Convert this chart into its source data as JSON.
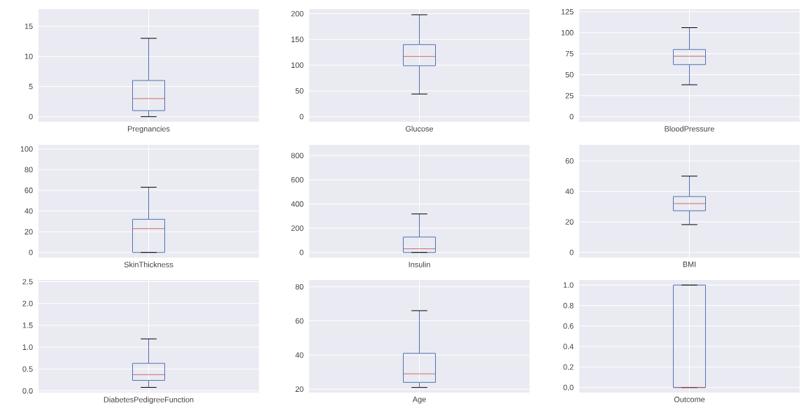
{
  "chart_data": [
    {
      "type": "box",
      "categories": [
        "Pregnancies"
      ],
      "color": "#4c72b0",
      "grid": true,
      "ylim": [
        -0.85,
        17.85
      ],
      "yticks": [
        0,
        5,
        10,
        15
      ],
      "boxes": [
        {
          "low": 0,
          "q1": 1,
          "median": 3,
          "q3": 6,
          "high": 13
        }
      ]
    },
    {
      "type": "box",
      "categories": [
        "Glucose"
      ],
      "color": "#4c72b0",
      "grid": true,
      "ylim": [
        -9.95,
        208.95
      ],
      "yticks": [
        0,
        50,
        100,
        150,
        200
      ],
      "boxes": [
        {
          "low": 44,
          "q1": 99,
          "median": 117,
          "q3": 140,
          "high": 198
        }
      ]
    },
    {
      "type": "box",
      "categories": [
        "BloodPressure"
      ],
      "color": "#4c72b0",
      "grid": true,
      "ylim": [
        -6.1,
        128.1
      ],
      "yticks": [
        0,
        25,
        50,
        75,
        100,
        125
      ],
      "boxes": [
        {
          "low": 38,
          "q1": 62,
          "median": 72,
          "q3": 80,
          "high": 106
        }
      ]
    },
    {
      "type": "box",
      "categories": [
        "SkinThickness"
      ],
      "color": "#4c72b0",
      "grid": true,
      "ylim": [
        -4.95,
        103.95
      ],
      "yticks": [
        0,
        20,
        40,
        60,
        80,
        100
      ],
      "boxes": [
        {
          "low": 0,
          "q1": 0,
          "median": 23,
          "q3": 32,
          "high": 63
        }
      ]
    },
    {
      "type": "box",
      "categories": [
        "Insulin"
      ],
      "color": "#4c72b0",
      "grid": true,
      "ylim": [
        -42.3,
        888.3
      ],
      "yticks": [
        0,
        200,
        400,
        600,
        800
      ],
      "boxes": [
        {
          "low": 0,
          "q1": 0,
          "median": 30,
          "q3": 127,
          "high": 318
        }
      ]
    },
    {
      "type": "box",
      "categories": [
        "BMI"
      ],
      "color": "#4c72b0",
      "grid": true,
      "ylim": [
        -3.4,
        70.5
      ],
      "yticks": [
        0,
        20,
        40,
        60
      ],
      "boxes": [
        {
          "low": 18.2,
          "q1": 27.3,
          "median": 32,
          "q3": 36.6,
          "high": 50
        }
      ]
    },
    {
      "type": "box",
      "categories": [
        "DiabetesPedigreeFunction"
      ],
      "color": "#4c72b0",
      "grid": true,
      "ylim": [
        -0.04,
        2.54
      ],
      "yticks": [
        {
          "value": 0,
          "label": "0.0"
        },
        {
          "value": 0.5,
          "label": "0.5"
        },
        {
          "value": 1,
          "label": "1.0"
        },
        {
          "value": 1.5,
          "label": "1.5"
        },
        {
          "value": 2,
          "label": "2.0"
        },
        {
          "value": 2.5,
          "label": "2.5"
        }
      ],
      "boxes": [
        {
          "low": 0.08,
          "q1": 0.24,
          "median": 0.37,
          "q3": 0.63,
          "high": 1.19
        }
      ]
    },
    {
      "type": "box",
      "categories": [
        "Age"
      ],
      "color": "#4c72b0",
      "grid": true,
      "ylim": [
        18,
        84
      ],
      "yticks": [
        20,
        40,
        60,
        80
      ],
      "boxes": [
        {
          "low": 21,
          "q1": 24,
          "median": 29,
          "q3": 41,
          "high": 66
        }
      ]
    },
    {
      "type": "box",
      "categories": [
        "Outcome"
      ],
      "color": "#4c72b0",
      "grid": true,
      "ylim": [
        -0.05,
        1.05
      ],
      "yticks": [
        {
          "value": 0,
          "label": "0.0"
        },
        {
          "value": 0.2,
          "label": "0.2"
        },
        {
          "value": 0.4,
          "label": "0.4"
        },
        {
          "value": 0.6,
          "label": "0.6"
        },
        {
          "value": 0.8,
          "label": "0.8"
        },
        {
          "value": 1,
          "label": "1.0"
        }
      ],
      "boxes": [
        {
          "low": 0,
          "q1": 0,
          "median": 0,
          "q3": 1,
          "high": 1
        }
      ]
    }
  ]
}
